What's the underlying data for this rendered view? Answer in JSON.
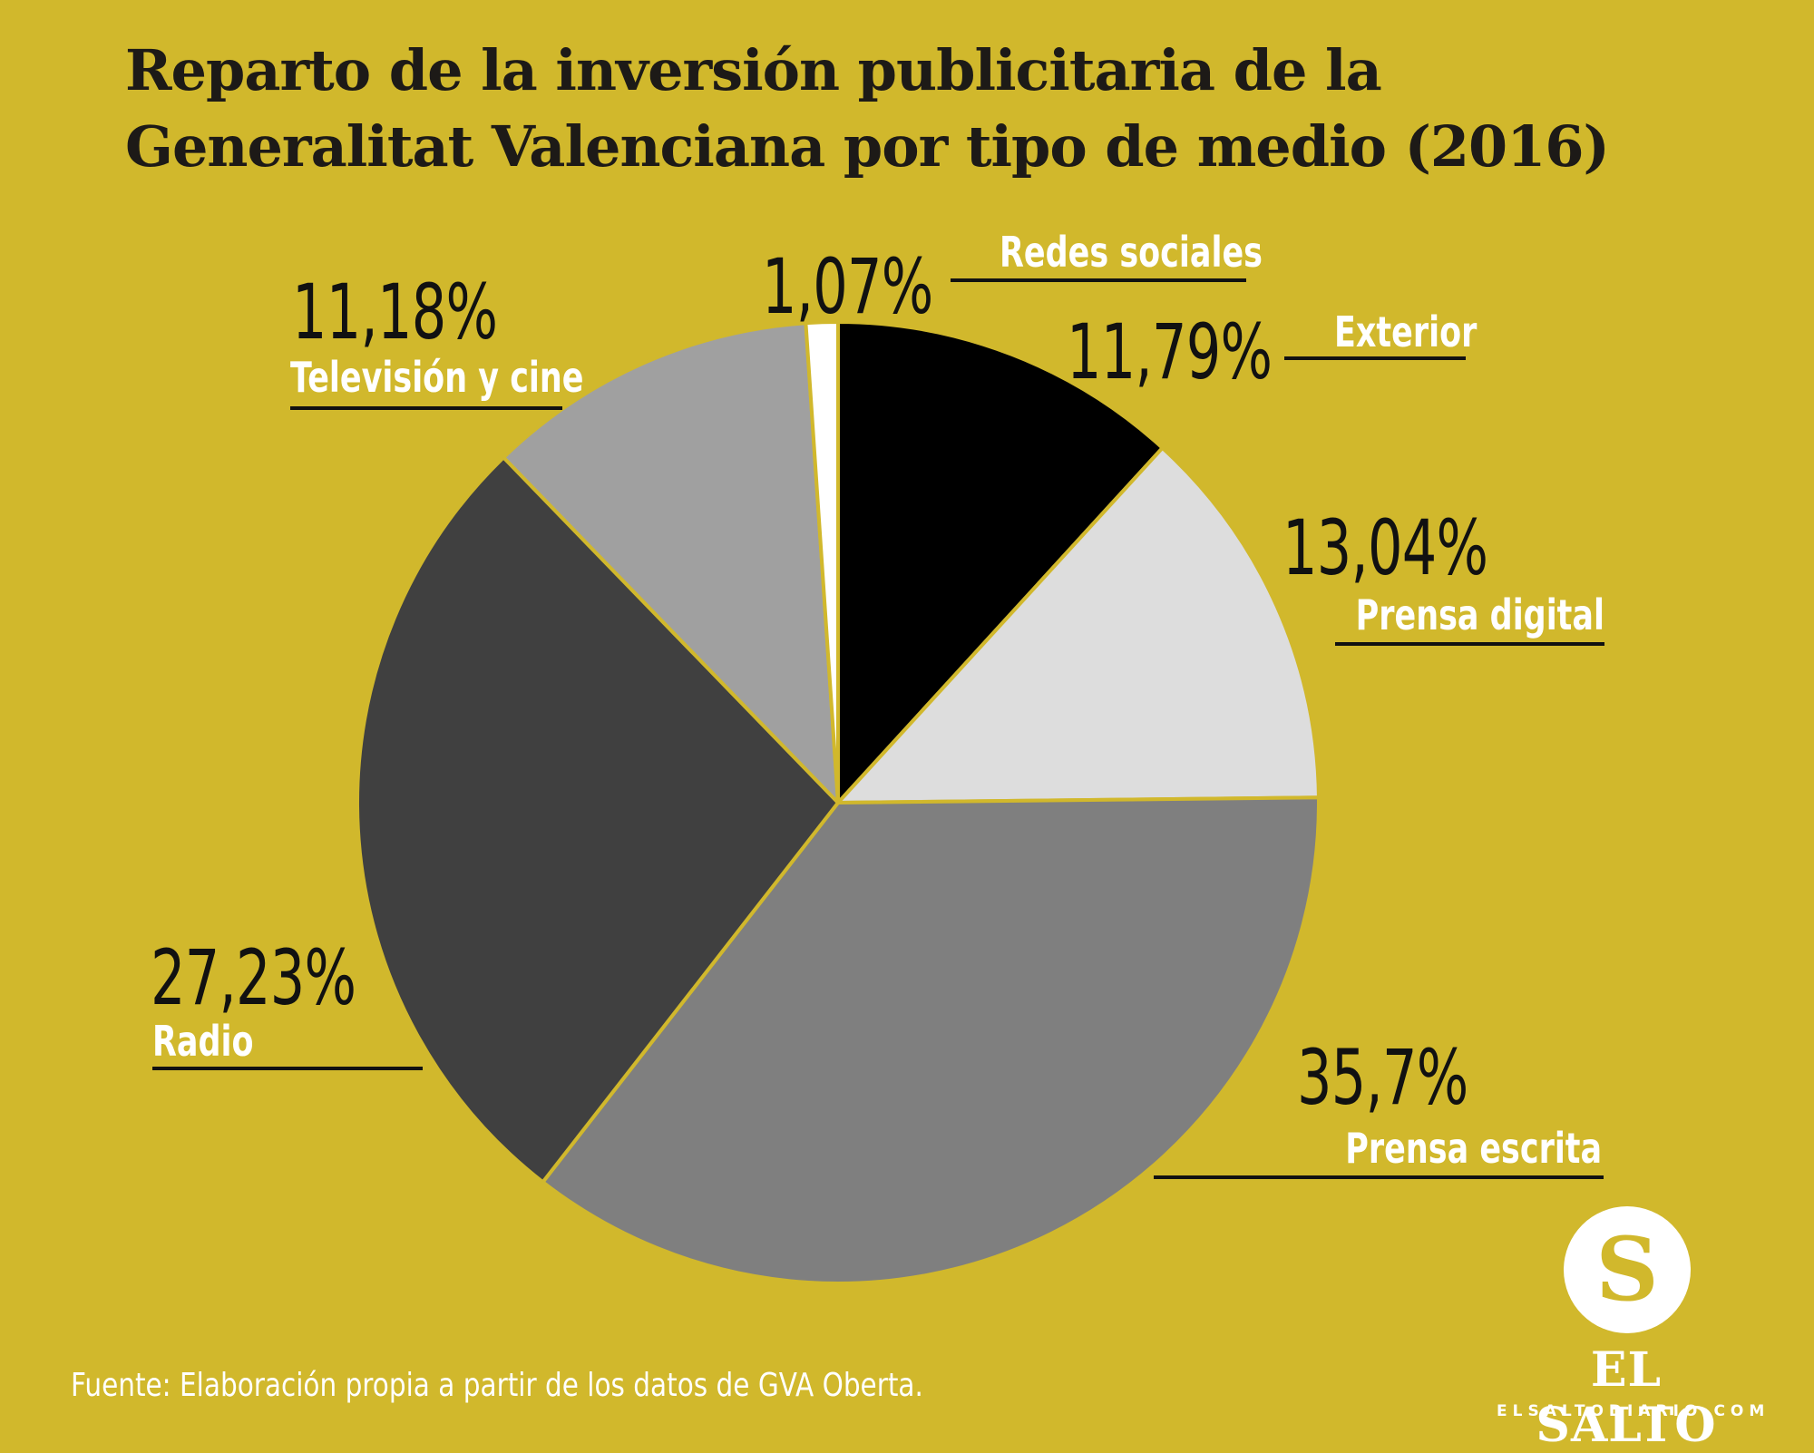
{
  "chart_data": {
    "type": "pie",
    "title_lines": [
      "Reparto de la inversión publicitaria de la",
      "Generalitat Valenciana por tipo de medio (2016)"
    ],
    "slices": [
      {
        "label": "Exterior",
        "value": 11.79,
        "value_label": "11,79%",
        "color": "#000000"
      },
      {
        "label": "Prensa digital",
        "value": 13.04,
        "value_label": "13,04%",
        "color": "#dddddd"
      },
      {
        "label": "Prensa escrita",
        "value": 35.7,
        "value_label": "35,7%",
        "color": "#7f7f7f"
      },
      {
        "label": "Radio",
        "value": 27.23,
        "value_label": "27,23%",
        "color": "#404040"
      },
      {
        "label": "Televisión y cine",
        "value": 11.18,
        "value_label": "11,18%",
        "color": "#a0a0a0"
      },
      {
        "label": "Redes sociales",
        "value": 1.07,
        "value_label": "1,07%",
        "color": "#ffffff"
      }
    ],
    "start": "12 o'clock",
    "direction": "clockwise",
    "legend": "none"
  },
  "source": "Fuente: Elaboración propia a partir de los datos de GVA Oberta.",
  "brand": {
    "monogram": "S",
    "name": "EL SALTO",
    "url": "ELSALTODIARIO.COM",
    "background": "#d1b82c"
  }
}
